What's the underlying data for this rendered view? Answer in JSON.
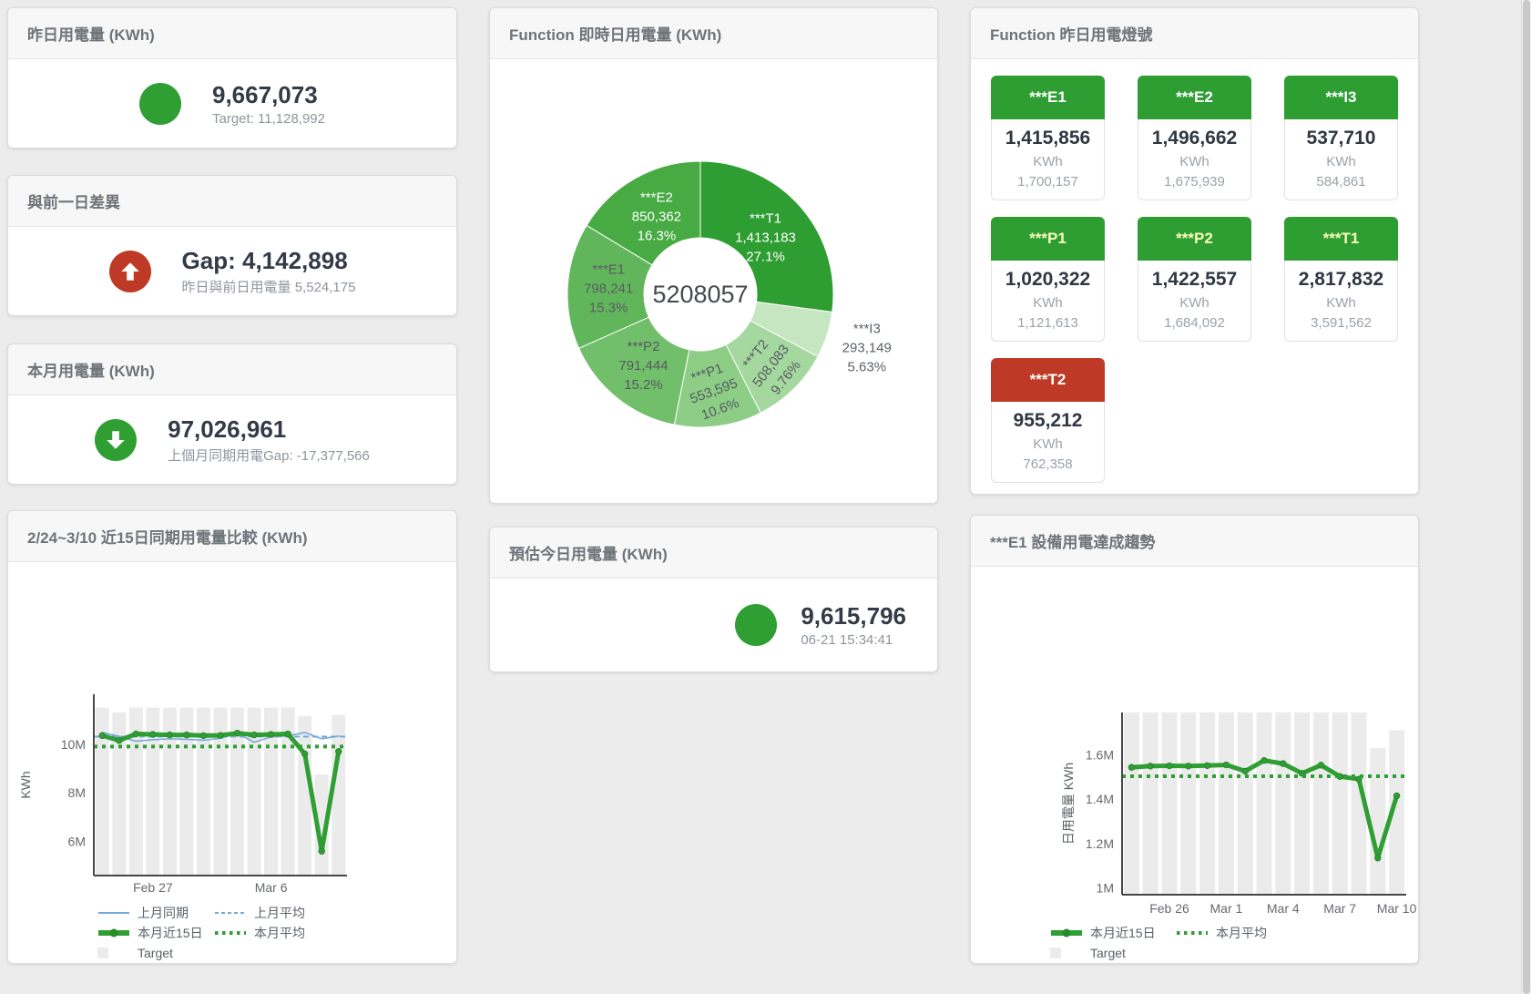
{
  "colors": {
    "green": "#2f9e33",
    "red": "#bf3a26",
    "blue": "#74a9d8",
    "bar_gray": "#ebebeb",
    "tile_green": "#2e9e33",
    "tile_red": "#bf3a26"
  },
  "cards": {
    "yesterday": {
      "title": "昨日用電量 (KWh)",
      "value": "9,667,073",
      "sub": "Target: 11,128,992",
      "status_color": "#2f9e33"
    },
    "gap": {
      "title": "與前一日差異",
      "value": "Gap: 4,142,898",
      "sub": "昨日與前日用電量 5,524,175",
      "direction": "up",
      "status_color": "#bf3a26"
    },
    "month": {
      "title": "本月用電量 (KWh)",
      "value": "97,026,961",
      "sub": "上個月同期用電Gap: -17,377,566",
      "direction": "down",
      "status_color": "#2f9e33"
    },
    "estimate": {
      "title": "預估今日用電量 (KWh)",
      "value": "9,615,796",
      "timestamp": "06-21 15:34:41",
      "status_color": "#2f9e33"
    }
  },
  "lamp_panel": {
    "title": "Function 昨日用電燈號",
    "tiles": [
      {
        "name": "***E1",
        "value": "1,415,856",
        "unit": "KWh",
        "target": "1,700,157",
        "header_color": "#2e9e33",
        "header_text_color": "#ffffff"
      },
      {
        "name": "***E2",
        "value": "1,496,662",
        "unit": "KWh",
        "target": "1,675,939",
        "header_color": "#2e9e33",
        "header_text_color": "#ffffff"
      },
      {
        "name": "***I3",
        "value": "537,710",
        "unit": "KWh",
        "target": "584,861",
        "header_color": "#2e9e33",
        "header_text_color": "#ffffff"
      },
      {
        "name": "***P1",
        "value": "1,020,322",
        "unit": "KWh",
        "target": "1,121,613",
        "header_color": "#2e9e33",
        "header_text_color": "#fbfdbb"
      },
      {
        "name": "***P2",
        "value": "1,422,557",
        "unit": "KWh",
        "target": "1,684,092",
        "header_color": "#2e9e33",
        "header_text_color": "#fbfdbb"
      },
      {
        "name": "***T1",
        "value": "2,817,832",
        "unit": "KWh",
        "target": "3,591,562",
        "header_color": "#2e9e33",
        "header_text_color": "#fbfdbb"
      },
      {
        "name": "***T2",
        "value": "955,212",
        "unit": "KWh",
        "target": "762,358",
        "header_color": "#bf3a26",
        "header_text_color": "#ffffff"
      }
    ]
  },
  "chart_data": [
    {
      "id": "function-realtime-donut",
      "type": "pie",
      "title": "Function 即時日用電量 (KWh)",
      "center_label": "5208057",
      "slices": [
        {
          "name": "***T1",
          "value": 1413183,
          "value_label": "1,413,183",
          "pct_label": "27.1%",
          "color": "#2f9e32",
          "text_color": "#ffffff",
          "label": "inside",
          "label_r": 95,
          "rotation": 0
        },
        {
          "name": "***I3",
          "value": 293149,
          "value_label": "293,149",
          "pct_label": "5.63%",
          "color": "#c5e6c0",
          "text_color": "#5d6267",
          "label": "outside",
          "label_r": 192,
          "rotation": 0
        },
        {
          "name": "***T2",
          "value": 508083,
          "value_label": "508,083",
          "pct_label": "9.76%",
          "color": "#a5d89e",
          "text_color": "#555b60",
          "label": "inside",
          "label_r": 110,
          "rotation": -52
        },
        {
          "name": "***P1",
          "value": 553595,
          "value_label": "553,595",
          "pct_label": "10.6%",
          "color": "#8dcd86",
          "text_color": "#555b60",
          "label": "inside",
          "label_r": 107,
          "rotation": -20
        },
        {
          "name": "***P2",
          "value": 791444,
          "value_label": "791,444",
          "pct_label": "15.2%",
          "color": "#72bf6b",
          "text_color": "#555b60",
          "label": "inside",
          "label_r": 100,
          "rotation": 0
        },
        {
          "name": "***E1",
          "value": 798241,
          "value_label": "798,241",
          "pct_label": "15.3%",
          "color": "#61b65b",
          "text_color": "#575c61",
          "label": "inside",
          "label_r": 101,
          "rotation": 0
        },
        {
          "name": "***E2",
          "value": 850362,
          "value_label": "850,362",
          "pct_label": "16.3%",
          "color": "#47aa42",
          "text_color": "#ffffff",
          "label": "inside",
          "label_r": 98,
          "rotation": 0
        }
      ]
    },
    {
      "id": "compare-15day",
      "type": "line+bar",
      "title": "2/24~3/10 近15日同期用電量比較 (KWh)",
      "ylabel": "KWh",
      "ylim": [
        4600000,
        12050000
      ],
      "yticks": [
        {
          "v": 6000000,
          "label": "6M"
        },
        {
          "v": 8000000,
          "label": "8M"
        },
        {
          "v": 10000000,
          "label": "10M"
        }
      ],
      "xticks": [
        {
          "i": 3,
          "label": "Feb 27"
        },
        {
          "i": 10,
          "label": "Mar 6"
        }
      ],
      "bars": {
        "name": "Target",
        "color": "#ebebeb",
        "values": [
          11500000,
          11300000,
          11500000,
          11500000,
          11500000,
          11500000,
          11500000,
          11500000,
          11500000,
          11500000,
          11500000,
          11500000,
          11150000,
          8750000,
          11200000
        ]
      },
      "series": [
        {
          "name": "上月同期",
          "color": "#74a9d8",
          "width": 1.6,
          "style": "solid",
          "values": [
            10480000,
            10320000,
            10120000,
            10180000,
            10220000,
            10200000,
            10160000,
            10240000,
            10440000,
            10080000,
            10300000,
            10340000,
            10480000,
            10220000,
            10330000
          ]
        },
        {
          "name": "上月平均",
          "color": "#74a9d8",
          "width": 2,
          "style": "dashed",
          "const": 10310000
        },
        {
          "name": "本月近15日",
          "color": "#2f9e33",
          "width": 5,
          "style": "solid",
          "markers": true,
          "values": [
            10350000,
            10150000,
            10420000,
            10400000,
            10380000,
            10380000,
            10350000,
            10360000,
            10450000,
            10380000,
            10400000,
            10420000,
            9600000,
            5600000,
            9700000
          ]
        },
        {
          "name": "本月平均",
          "color": "#2f9e33",
          "width": 4,
          "style": "dotted",
          "const": 9900000
        }
      ],
      "legend": [
        [
          {
            "label": "上月同期",
            "sample": "line-solid",
            "color": "#74a9d8"
          },
          {
            "label": "上月平均",
            "sample": "line-dashed",
            "color": "#74a9d8"
          }
        ],
        [
          {
            "label": "本月近15日",
            "sample": "line-thick",
            "color": "#2f9e33"
          },
          {
            "label": "本月平均",
            "sample": "line-dotted",
            "color": "#2f9e33"
          }
        ],
        [
          {
            "label": "Target",
            "sample": "box",
            "color": "#ebebeb"
          }
        ]
      ]
    },
    {
      "id": "e1-trend",
      "type": "line+bar",
      "title": "***E1 設備用電達成趨勢",
      "ylabel": "日用電量 KWh",
      "ylim": [
        970000,
        1790000
      ],
      "yticks": [
        {
          "v": 1000000,
          "label": "1M"
        },
        {
          "v": 1200000,
          "label": "1.2M"
        },
        {
          "v": 1400000,
          "label": "1.4M"
        },
        {
          "v": 1600000,
          "label": "1.6M"
        }
      ],
      "xticks": [
        {
          "i": 2,
          "label": "Feb 26"
        },
        {
          "i": 5,
          "label": "Mar 1"
        },
        {
          "i": 8,
          "label": "Mar 4"
        },
        {
          "i": 11,
          "label": "Mar 7"
        },
        {
          "i": 14,
          "label": "Mar 10"
        }
      ],
      "bars": {
        "name": "Target",
        "color": "#ebebeb",
        "values": [
          1800000,
          1800000,
          1800000,
          1800000,
          1800000,
          1800000,
          1800000,
          1800000,
          1800000,
          1800000,
          1800000,
          1800000,
          1800000,
          1630000,
          1710000
        ]
      },
      "series": [
        {
          "name": "本月近15日",
          "color": "#2f9e33",
          "width": 5,
          "style": "solid",
          "markers": true,
          "values": [
            1543000,
            1549000,
            1550000,
            1549000,
            1551000,
            1554000,
            1526000,
            1574000,
            1560000,
            1516000,
            1553000,
            1502000,
            1490000,
            1135000,
            1415000
          ]
        },
        {
          "name": "本月平均",
          "color": "#2f9e33",
          "width": 4,
          "style": "dotted",
          "const": 1503000
        }
      ],
      "legend": [
        [
          {
            "label": "本月近15日",
            "sample": "line-thick",
            "color": "#2f9e33"
          },
          {
            "label": "本月平均",
            "sample": "line-dotted",
            "color": "#2f9e33"
          }
        ],
        [
          {
            "label": "Target",
            "sample": "box",
            "color": "#ebebeb"
          }
        ]
      ]
    }
  ]
}
